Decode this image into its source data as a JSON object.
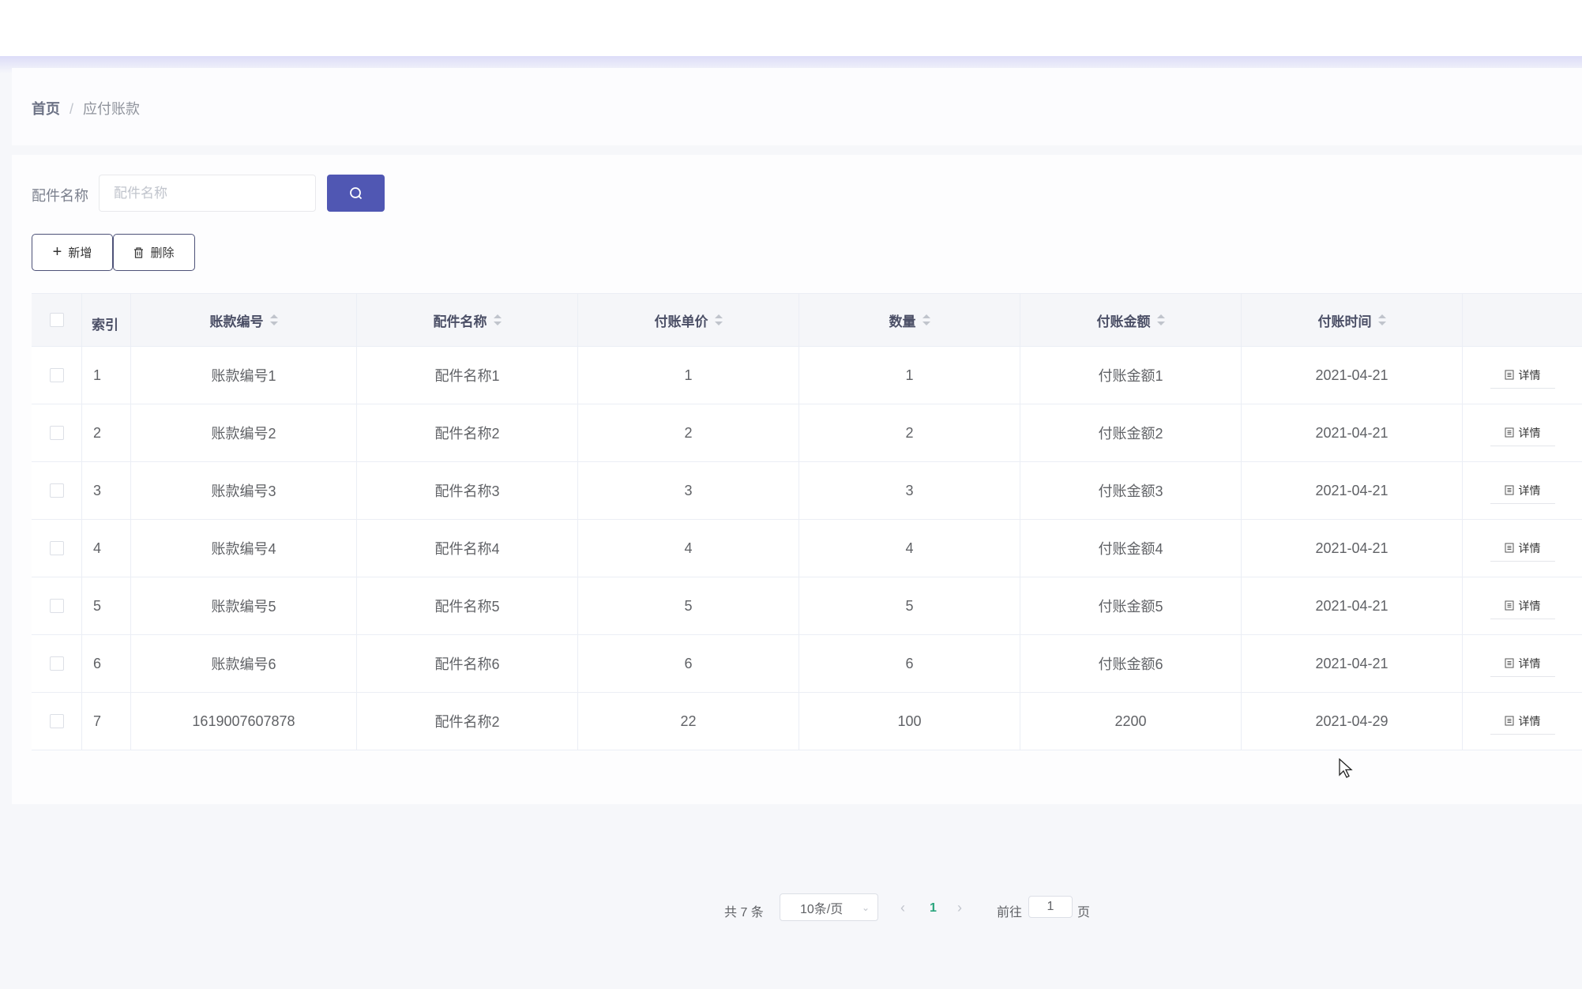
{
  "breadcrumb": {
    "home": "首页",
    "separator": "/",
    "current": "应付账款"
  },
  "search": {
    "label": "配件名称",
    "placeholder": "配件名称",
    "value": ""
  },
  "actions": {
    "add": "新增",
    "delete": "删除"
  },
  "colors": {
    "primary": "#5057b3",
    "active_page": "#2aa57d"
  },
  "table": {
    "headers": [
      "索引",
      "账款编号",
      "配件名称",
      "付账单价",
      "数量",
      "付账金额",
      "付账时间"
    ],
    "rows": [
      [
        "1",
        "账款编号1",
        "配件名称1",
        "1",
        "1",
        "付账金额1",
        "2021-04-21"
      ],
      [
        "2",
        "账款编号2",
        "配件名称2",
        "2",
        "2",
        "付账金额2",
        "2021-04-21"
      ],
      [
        "3",
        "账款编号3",
        "配件名称3",
        "3",
        "3",
        "付账金额3",
        "2021-04-21"
      ],
      [
        "4",
        "账款编号4",
        "配件名称4",
        "4",
        "4",
        "付账金额4",
        "2021-04-21"
      ],
      [
        "5",
        "账款编号5",
        "配件名称5",
        "5",
        "5",
        "付账金额5",
        "2021-04-21"
      ],
      [
        "6",
        "账款编号6",
        "配件名称6",
        "6",
        "6",
        "付账金额6",
        "2021-04-21"
      ],
      [
        "7",
        "1619007607878",
        "配件名称2",
        "22",
        "100",
        "2200",
        "2021-04-29"
      ]
    ],
    "detail_label": "详情"
  },
  "pagination": {
    "total": "共 7 条",
    "page_size": "10条/页",
    "current_page": "1",
    "goto_prefix": "前往",
    "goto_value": "1",
    "goto_suffix": "页"
  }
}
